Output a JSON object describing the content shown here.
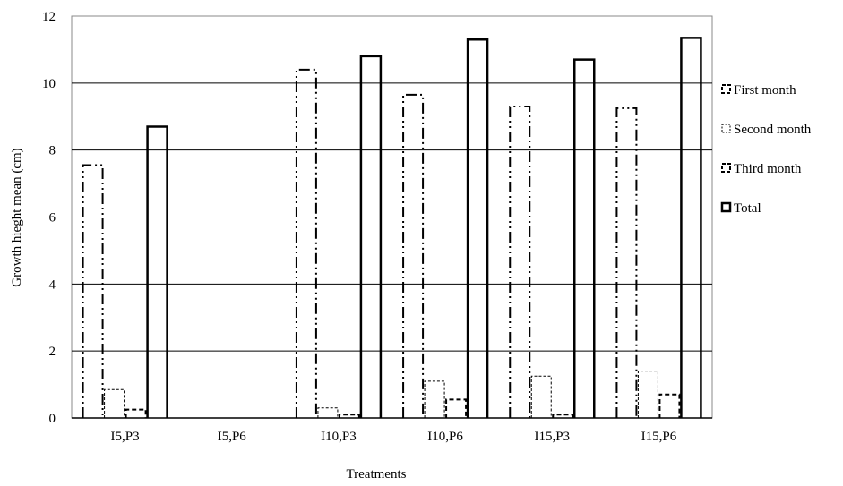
{
  "chart_data": {
    "type": "bar",
    "title": "",
    "xlabel": "Treatments",
    "ylabel": "Growth hieght mean (cm)",
    "ylim": [
      0,
      12
    ],
    "yticks": [
      0,
      2,
      4,
      6,
      8,
      10,
      12
    ],
    "grid": true,
    "legend_position": "right",
    "categories": [
      "I5,P3",
      "I5,P6",
      "I10,P3",
      "I10,P6",
      "I15,P3",
      "I15,P6"
    ],
    "series": [
      {
        "name": "First month",
        "values": [
          7.55,
          0,
          10.4,
          9.65,
          9.3,
          9.25
        ],
        "style": "dashdotdot"
      },
      {
        "name": "Second month",
        "values": [
          0.85,
          0,
          0.3,
          1.1,
          1.25,
          1.4
        ],
        "style": "thin-solid"
      },
      {
        "name": "Third month",
        "values": [
          0.25,
          0,
          0.1,
          0.55,
          0.1,
          0.7
        ],
        "style": "dashed"
      },
      {
        "name": "Total",
        "values": [
          8.7,
          0,
          10.8,
          11.3,
          10.7,
          11.35
        ],
        "style": "solid"
      }
    ]
  }
}
